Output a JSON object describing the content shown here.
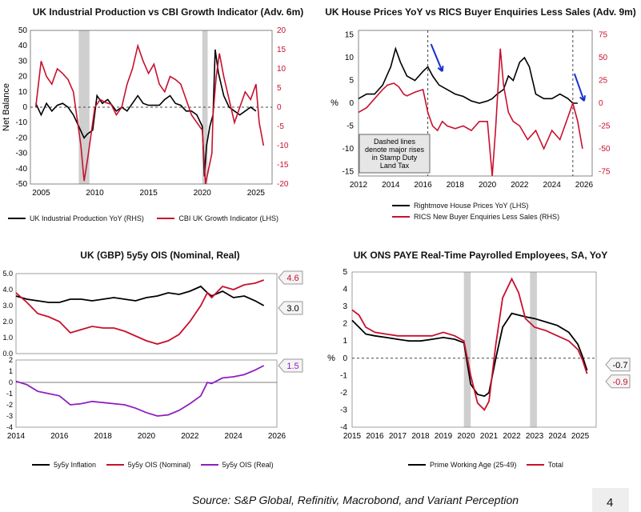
{
  "charts": [
    {
      "title": "UK Industrial Production vs CBI Growth Indicator (Adv. 6m)",
      "chart_data": {
        "type": "line",
        "ylabel": "Net Balance",
        "left_axis": {
          "min": -50,
          "max": 50,
          "ticks": [
            50,
            40,
            30,
            20,
            10,
            0,
            -10,
            -20,
            -30,
            -40,
            -50
          ]
        },
        "right_axis": {
          "min": -20,
          "max": 20,
          "ticks": [
            20,
            15,
            10,
            5,
            0,
            -5,
            -10,
            -15,
            -20
          ]
        },
        "x_range": [
          2004,
          2026.5
        ],
        "x_ticks": [
          "2005",
          "2010",
          "2015",
          "2020",
          "2025"
        ],
        "shaded_periods": [
          [
            2008.5,
            2009.5
          ],
          [
            2020.0,
            2020.5
          ]
        ],
        "zero_line": "dashed",
        "series": [
          {
            "name": "UK Industrial Production YoY (RHS)",
            "color": "#000000",
            "axis": "right",
            "x": [
              2004.5,
              2005,
              2005.5,
              2006,
              2006.5,
              2007,
              2007.5,
              2008,
              2008.5,
              2009,
              2009.3,
              2009.8,
              2010.2,
              2010.7,
              2011.2,
              2012,
              2012.5,
              2013,
              2014,
              2014.5,
              2015,
              2016,
              2016.5,
              2017,
              2017.5,
              2018,
              2018.5,
              2019,
              2019.5,
              2020,
              2020.2,
              2020.4,
              2020.7,
              2021,
              2021.2,
              2021.5,
              2022,
              2022.5,
              2023,
              2023.5,
              2024,
              2024.5,
              2025
            ],
            "y": [
              1,
              -2,
              1,
              -1,
              0.5,
              1,
              0,
              -2,
              -5,
              -8,
              -7,
              -6,
              3,
              1,
              2,
              -1,
              0,
              -1,
              3,
              1,
              0.5,
              0.5,
              2,
              3,
              1,
              0.5,
              -1,
              -1,
              -2,
              -5,
              -18,
              -10,
              -5,
              -2,
              15,
              9,
              3,
              0,
              -1,
              -2,
              -1,
              0,
              -1
            ]
          },
          {
            "name": "CBI UK Growth Indicator (LHS)",
            "color": "#c8102e",
            "axis": "left",
            "x": [
              2004.5,
              2005,
              2005.5,
              2006,
              2006.5,
              2007,
              2007.5,
              2008,
              2008.3,
              2008.7,
              2009,
              2009.3,
              2009.6,
              2010,
              2010.5,
              2011,
              2011.5,
              2012,
              2012.5,
              2013,
              2013.5,
              2014,
              2014.5,
              2015,
              2015.5,
              2016,
              2016.5,
              2017,
              2017.5,
              2018,
              2018.5,
              2019,
              2019.5,
              2020,
              2020.3,
              2020.6,
              2020.9,
              2021,
              2021.3,
              2021.6,
              2022,
              2022.5,
              2023,
              2023.5,
              2024,
              2024.5,
              2025,
              2025.3,
              2025.7
            ],
            "y": [
              0,
              30,
              20,
              15,
              25,
              22,
              18,
              10,
              -5,
              -25,
              -48,
              -35,
              -20,
              0,
              5,
              3,
              2,
              -5,
              0,
              15,
              25,
              40,
              30,
              22,
              28,
              15,
              10,
              20,
              18,
              15,
              5,
              -5,
              -10,
              -15,
              -50,
              -40,
              -30,
              -5,
              20,
              35,
              20,
              5,
              -10,
              0,
              10,
              5,
              15,
              -10,
              -25
            ]
          }
        ]
      },
      "legend": [
        "UK Industrial Production YoY (RHS)",
        "CBI UK Growth Indicator (LHS)"
      ]
    },
    {
      "title": "UK House Prices YoY vs RICS Buyer Enquiries Less Sales (Adv. 9m)",
      "chart_data": {
        "type": "line",
        "ylabel": "%",
        "left_axis": {
          "min": -16,
          "max": 16,
          "ticks": [
            15,
            10,
            5,
            0,
            -5,
            -10,
            -15
          ]
        },
        "right_axis": {
          "min": -80,
          "max": 80,
          "ticks": [
            75,
            50,
            25,
            0,
            -25,
            -50,
            -75
          ]
        },
        "x_range": [
          2012,
          2026.5
        ],
        "x_ticks": [
          "2012",
          "2014",
          "2016",
          "2018",
          "2020",
          "2022",
          "2024",
          "2026"
        ],
        "vertical_dashed": [
          2016.3,
          2025.3
        ],
        "annotation": "Dashed lines\ndenote major rises\nin Stamp Duty\nLand Tax",
        "series": [
          {
            "name": "Rightmove House Prices YoY (LHS)",
            "color": "#000000",
            "axis": "left",
            "x": [
              2012,
              2012.5,
              2013,
              2013.5,
              2014,
              2014.3,
              2014.6,
              2015,
              2015.5,
              2016,
              2016.3,
              2016.6,
              2017,
              2017.5,
              2018,
              2018.5,
              2019,
              2019.5,
              2020,
              2020.3,
              2020.6,
              2021,
              2021.3,
              2021.6,
              2022,
              2022.3,
              2022.6,
              2023,
              2023.5,
              2024,
              2024.5,
              2025,
              2025.3,
              2025.6
            ],
            "y": [
              1,
              2,
              2,
              4,
              8,
              12,
              9,
              6,
              5,
              7,
              8,
              6,
              4,
              3,
              2,
              1.5,
              0.5,
              0,
              0.5,
              1,
              2,
              3,
              6,
              5,
              9,
              10,
              8,
              2,
              1,
              1,
              2,
              1,
              0,
              0
            ]
          },
          {
            "name": "RICS New Buyer Enquiries Less Sales (RHS)",
            "color": "#c8102e",
            "axis": "right",
            "x": [
              2012,
              2012.5,
              2013,
              2013.5,
              2013.8,
              2014.2,
              2014.5,
              2014.8,
              2015,
              2015.5,
              2016,
              2016.3,
              2016.6,
              2016.9,
              2017.2,
              2017.5,
              2018,
              2018.5,
              2019,
              2019.5,
              2020,
              2020.3,
              2020.5,
              2020.8,
              2021,
              2021.3,
              2021.6,
              2022,
              2022.5,
              2023,
              2023.5,
              2024,
              2024.5,
              2025,
              2025.3,
              2025.6,
              2025.9
            ],
            "y": [
              -10,
              -5,
              5,
              15,
              20,
              22,
              18,
              10,
              8,
              12,
              15,
              -10,
              -25,
              -30,
              -20,
              -25,
              -28,
              -25,
              -30,
              -20,
              -20,
              -80,
              -30,
              60,
              20,
              -10,
              -20,
              -25,
              -40,
              -30,
              -50,
              -30,
              -40,
              -15,
              0,
              -20,
              -50
            ]
          }
        ]
      },
      "legend": [
        "Rightmove House Prices YoY (LHS)",
        "RICS New Buyer Enquiries Less Sales (RHS)"
      ]
    },
    {
      "title": "UK (GBP) 5y5y OIS (Nominal, Real)",
      "chart_data": {
        "type": "line",
        "panels": [
          {
            "y_range": [
              0,
              5
            ],
            "ticks": [
              5.0,
              4.0,
              3.0,
              2.0,
              1.0,
              0.0
            ]
          },
          {
            "y_range": [
              -4,
              2
            ],
            "ticks": [
              2,
              1,
              0,
              -1,
              -2,
              -3,
              -4
            ]
          }
        ],
        "x_range": [
          2014,
          2026
        ],
        "x_ticks": [
          "2014",
          "2016",
          "2018",
          "2020",
          "2022",
          "2024",
          "2026"
        ],
        "end_labels": [
          "4.6",
          "3.0",
          "1.5"
        ],
        "series": [
          {
            "name": "5y5y Inflation",
            "color": "#000000",
            "panel": 0,
            "x": [
              2014,
              2014.5,
              2015,
              2015.5,
              2016,
              2016.5,
              2017,
              2017.5,
              2018,
              2018.5,
              2019,
              2019.5,
              2020,
              2020.5,
              2021,
              2021.5,
              2022,
              2022.5,
              2022.8,
              2023,
              2023.5,
              2024,
              2024.5,
              2025,
              2025.4
            ],
            "y": [
              3.6,
              3.4,
              3.3,
              3.2,
              3.2,
              3.4,
              3.4,
              3.3,
              3.4,
              3.5,
              3.4,
              3.3,
              3.5,
              3.6,
              3.8,
              3.7,
              3.9,
              4.2,
              3.8,
              3.6,
              3.9,
              3.5,
              3.6,
              3.3,
              3.0
            ]
          },
          {
            "name": "5y5y OIS (Nominal)",
            "color": "#c8102e",
            "panel": 0,
            "x": [
              2014,
              2014.5,
              2015,
              2015.5,
              2016,
              2016.5,
              2017,
              2017.5,
              2018,
              2018.5,
              2019,
              2019.5,
              2020,
              2020.5,
              2021,
              2021.5,
              2022,
              2022.5,
              2022.8,
              2023,
              2023.5,
              2024,
              2024.5,
              2025,
              2025.4
            ],
            "y": [
              3.8,
              3.2,
              2.5,
              2.3,
              2.0,
              1.3,
              1.5,
              1.7,
              1.6,
              1.6,
              1.4,
              1.1,
              0.8,
              0.6,
              0.8,
              1.2,
              2.0,
              3.0,
              3.8,
              3.5,
              4.2,
              4.0,
              4.3,
              4.4,
              4.6
            ]
          },
          {
            "name": "5y5y OIS (Real)",
            "color": "#8e1fbf",
            "panel": 1,
            "x": [
              2014,
              2014.5,
              2015,
              2015.5,
              2016,
              2016.5,
              2017,
              2017.5,
              2018,
              2018.5,
              2019,
              2019.5,
              2020,
              2020.5,
              2021,
              2021.5,
              2022,
              2022.5,
              2022.8,
              2023,
              2023.5,
              2024,
              2024.5,
              2025,
              2025.4
            ],
            "y": [
              0.1,
              -0.2,
              -0.8,
              -1.0,
              -1.2,
              -2.0,
              -1.9,
              -1.7,
              -1.8,
              -1.9,
              -2.0,
              -2.3,
              -2.7,
              -3.0,
              -2.9,
              -2.5,
              -1.9,
              -1.2,
              0,
              -0.1,
              0.4,
              0.5,
              0.7,
              1.1,
              1.5
            ]
          }
        ]
      },
      "legend": [
        "5y5y Inflation",
        "5y5y OIS (Nominal)",
        "5y5y OIS (Real)"
      ]
    },
    {
      "title": "UK ONS PAYE Real-Time Payrolled Employees, SA, YoY",
      "chart_data": {
        "type": "line",
        "ylabel": "%",
        "y_range": [
          -4,
          5
        ],
        "y_ticks": [
          5,
          4,
          3,
          2,
          1,
          0,
          -1,
          -2,
          -3,
          -4
        ],
        "x_range": [
          2015,
          2025.7
        ],
        "x_ticks": [
          "2015",
          "2016",
          "2017",
          "2018",
          "2019",
          "2020",
          "2021",
          "2022",
          "2023",
          "2024",
          "2025"
        ],
        "shaded_periods": [
          [
            2019.9,
            2020.2
          ],
          [
            2022.8,
            2023.1
          ]
        ],
        "zero_line": "dashed",
        "end_labels": [
          "-0.7",
          "-0.9"
        ],
        "series": [
          {
            "name": "Prime Working Age (25-49)",
            "color": "#000000",
            "x": [
              2015,
              2015.3,
              2015.6,
              2016,
              2016.5,
              2017,
              2017.5,
              2018,
              2018.5,
              2019,
              2019.5,
              2019.9,
              2020.2,
              2020.5,
              2020.8,
              2021,
              2021.3,
              2021.6,
              2022,
              2022.3,
              2022.6,
              2023,
              2023.5,
              2024,
              2024.5,
              2024.9,
              2025.1,
              2025.3
            ],
            "y": [
              2.2,
              1.8,
              1.4,
              1.3,
              1.2,
              1.1,
              1.0,
              1.0,
              1.1,
              1.2,
              1.1,
              0.9,
              -1.5,
              -2.1,
              -2.2,
              -2.0,
              0,
              1.8,
              2.6,
              2.5,
              2.4,
              2.3,
              2.1,
              1.9,
              1.5,
              0.8,
              0.1,
              -0.7
            ]
          },
          {
            "name": "Total",
            "color": "#c8102e",
            "x": [
              2015,
              2015.3,
              2015.6,
              2016,
              2016.5,
              2017,
              2017.5,
              2018,
              2018.5,
              2019,
              2019.5,
              2019.9,
              2020.2,
              2020.5,
              2020.8,
              2021,
              2021.3,
              2021.6,
              2022,
              2022.3,
              2022.6,
              2023,
              2023.5,
              2024,
              2024.5,
              2024.9,
              2025.1,
              2025.3
            ],
            "y": [
              2.8,
              2.5,
              1.8,
              1.5,
              1.4,
              1.3,
              1.3,
              1.3,
              1.3,
              1.5,
              1.3,
              1.0,
              -1.0,
              -2.6,
              -3.0,
              -2.5,
              0.8,
              3.5,
              4.6,
              3.8,
              2.3,
              1.8,
              1.6,
              1.3,
              1.0,
              0.5,
              -0.1,
              -0.9
            ]
          }
        ]
      },
      "legend": [
        "Prime Working Age (25-49)",
        "Total"
      ]
    }
  ],
  "source": "Source: S&P Global, Refinitiv, Macrobond, and Variant Perception",
  "page_number": "4"
}
